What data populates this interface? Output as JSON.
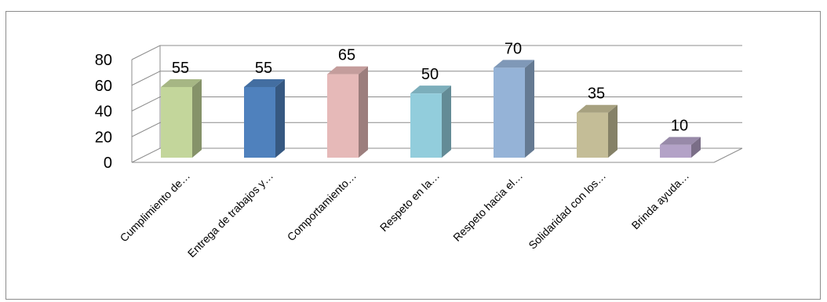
{
  "chart_data": {
    "type": "bar",
    "categories": [
      "Cumplimiento de…",
      "Entrega de trabajos y…",
      "Comportamiento…",
      "Respeto en la…",
      "Respeto hacia el…",
      "Solidaridad con los…",
      "Brinda ayuda…"
    ],
    "values": [
      55,
      55,
      65,
      50,
      70,
      35,
      10
    ],
    "data_labels": [
      "55",
      "55",
      "65",
      "50",
      "70",
      "35",
      "10"
    ],
    "y_ticks": [
      "0",
      "20",
      "40",
      "60",
      "80"
    ],
    "ylim": [
      0,
      80
    ],
    "grid": true,
    "colors": [
      "#c3d69b",
      "#4f81bd",
      "#e6b9b8",
      "#92cddc",
      "#95b3d7",
      "#c4bd97",
      "#b3a2c7"
    ],
    "title": "",
    "xlabel": "",
    "ylabel": ""
  }
}
